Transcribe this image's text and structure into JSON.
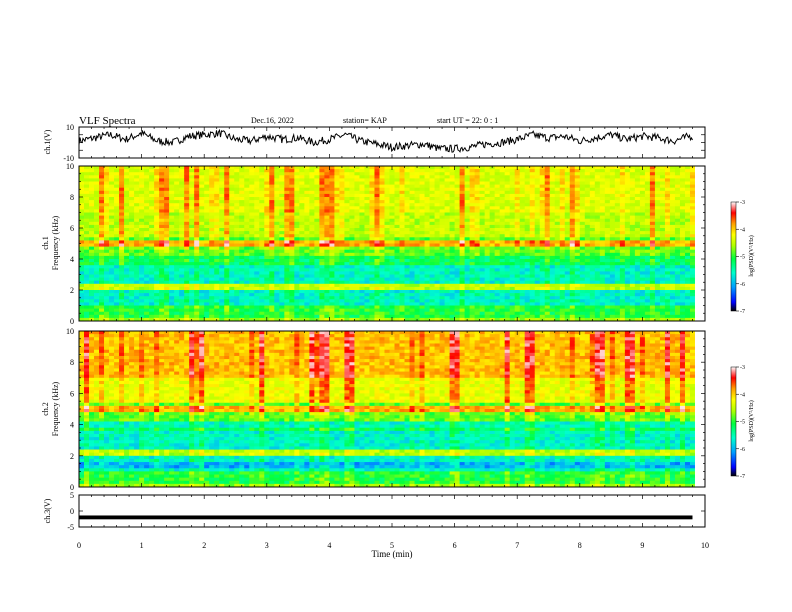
{
  "header": {
    "title": "VLF Spectra",
    "date": "Dec.16, 2022",
    "station": "station= KAP",
    "start": "start  UT =  22: 0  : 1"
  },
  "colors": {
    "spectrogram_scale": [
      "#000000",
      "#0000ff",
      "#00a0ff",
      "#00ffcc",
      "#00ff40",
      "#b0ff00",
      "#ffff00",
      "#ffa000",
      "#ff0000",
      "#ffffff"
    ],
    "trace": "#000000"
  },
  "chart_data": [
    {
      "id": "ch1-waveform",
      "type": "line",
      "ylabel": "ch.1(V)",
      "ylim": [
        -10,
        10
      ],
      "y_ticks": [
        "10",
        "-10"
      ],
      "xlim": [
        0,
        10
      ],
      "x_samples_min": [
        0.0,
        0.25,
        0.5,
        0.75,
        1.0,
        1.25,
        1.5,
        1.75,
        2.0,
        2.25,
        2.5,
        2.75,
        3.0,
        3.25,
        3.5,
        3.75,
        4.0,
        4.25,
        4.5,
        4.75,
        5.0,
        5.25,
        5.5,
        5.75,
        6.0,
        6.25,
        6.5,
        6.75,
        7.0,
        7.25,
        7.5,
        7.75,
        8.0,
        8.25,
        8.5,
        8.75,
        9.0,
        9.25,
        9.5,
        9.75
      ],
      "values": [
        1,
        3,
        5,
        2,
        6,
        1,
        0,
        4,
        5,
        6,
        2,
        1,
        4,
        2,
        3,
        0,
        2,
        5,
        1,
        -1,
        -3,
        -2,
        -1,
        -4,
        -4,
        -3,
        -1,
        0,
        2,
        5,
        3,
        4,
        1,
        3,
        5,
        2,
        4,
        3,
        1,
        4
      ]
    },
    {
      "id": "ch1-spectrogram",
      "type": "heatmap",
      "ylabel": "ch.1\nFrequency (kHz)",
      "ylim": [
        0,
        10
      ],
      "y_ticks": [
        "0",
        "2",
        "4",
        "6",
        "8",
        "10"
      ],
      "xlim": [
        0,
        10
      ],
      "colorbar": {
        "label": "log(PSD)(V²/Hz)",
        "range": [
          -7,
          -3
        ],
        "ticks": [
          "-3",
          "-4",
          "-5",
          "-6",
          "-7"
        ]
      }
    },
    {
      "id": "ch2-spectrogram",
      "type": "heatmap",
      "ylabel": "ch.2\nFrequency (kHz)",
      "ylim": [
        0,
        10
      ],
      "y_ticks": [
        "0",
        "2",
        "4",
        "6",
        "8",
        "10"
      ],
      "xlim": [
        0,
        10
      ],
      "colorbar": {
        "label": "log(PSD)(V²/Hz)",
        "range": [
          -7,
          -3
        ],
        "ticks": [
          "-3",
          "-4",
          "-5",
          "-6",
          "-7"
        ]
      }
    },
    {
      "id": "ch3-waveform",
      "type": "line",
      "ylabel": "ch.3(V)",
      "ylim": [
        -5,
        5
      ],
      "y_ticks": [
        "5",
        "0",
        "-5"
      ],
      "xlim": [
        0,
        10
      ],
      "mean_value": -2,
      "xlabel": "Time (min)",
      "x_ticks": [
        "0",
        "1",
        "2",
        "3",
        "4",
        "5",
        "6",
        "7",
        "8",
        "9",
        "10"
      ]
    }
  ]
}
